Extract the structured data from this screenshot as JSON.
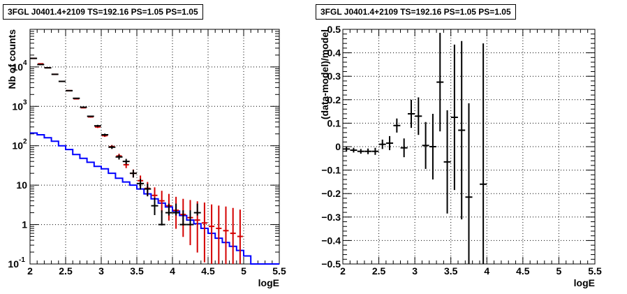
{
  "chart_data": [
    {
      "type": "histogram",
      "title": "3FGL J0401.4+2109 TS=192.16 PS=1.05 PS=1.05",
      "xlabel": "logE",
      "ylabel": "Nb of counts",
      "xlim": [
        2,
        5.5
      ],
      "ylim": [
        0.1,
        90000
      ],
      "y_scale": "log",
      "grid": true,
      "x_ticks": [
        "2",
        "2.5",
        "3",
        "3.5",
        "4",
        "4.5",
        "5",
        "5.5"
      ],
      "y_ticks": [
        {
          "value": 0.1,
          "base": "10",
          "exp": "-1"
        },
        {
          "value": 1,
          "base": "1",
          "exp": ""
        },
        {
          "value": 10,
          "base": "10",
          "exp": ""
        },
        {
          "value": 100,
          "base": "10",
          "exp": "2"
        },
        {
          "value": 1000,
          "base": "10",
          "exp": "3"
        },
        {
          "value": 10000,
          "base": "10",
          "exp": "4"
        }
      ],
      "series": [
        {
          "role": "data points (black)",
          "color": "#000000",
          "x": [
            2.05,
            2.15,
            2.25,
            2.35,
            2.45,
            2.55,
            2.65,
            2.75,
            2.85,
            2.95,
            3.05,
            3.15,
            3.25,
            3.35,
            3.45,
            3.55,
            3.65,
            3.75,
            3.85,
            3.95,
            4.05,
            4.15,
            4.25,
            4.35
          ],
          "y": [
            16500,
            11500,
            9500,
            6500,
            4300,
            2500,
            1600,
            950,
            560,
            320,
            190,
            92,
            52,
            40,
            20,
            11,
            8,
            3,
            1,
            2,
            2,
            1,
            1,
            2
          ],
          "err_lo": [
            0.99,
            0.99,
            0.99,
            0.99,
            0.99,
            0.99,
            0.98,
            0.97,
            0.96,
            0.94,
            0.93,
            0.9,
            0.86,
            0.84,
            0.78,
            0.7,
            0.65,
            0.58,
            0.95,
            0.85,
            0.85,
            0.95,
            0.95,
            0.85
          ],
          "err_hi": [
            1.01,
            1.01,
            1.01,
            1.01,
            1.02,
            1.02,
            1.03,
            1.03,
            1.04,
            1.06,
            1.07,
            1.1,
            1.14,
            1.16,
            1.22,
            1.3,
            1.35,
            1.6,
            2.3,
            1.7,
            1.7,
            2.3,
            2.3,
            1.7
          ]
        },
        {
          "role": "model points (red)",
          "color": "#d40000",
          "x": [
            2.05,
            2.15,
            2.25,
            2.35,
            2.45,
            2.55,
            2.65,
            2.75,
            2.85,
            2.95,
            3.05,
            3.15,
            3.25,
            3.35,
            3.45,
            3.55,
            3.65,
            3.75,
            3.85,
            3.95,
            4.05,
            4.15,
            4.25,
            4.35,
            4.45,
            4.55,
            4.65,
            4.75,
            4.85,
            4.95
          ],
          "y": [
            16500,
            12000,
            9500,
            6500,
            4300,
            2500,
            1550,
            920,
            540,
            300,
            180,
            95,
            55,
            33,
            20,
            13,
            8.3,
            5.5,
            4,
            3,
            2.3,
            1.8,
            1.5,
            1.3,
            1.1,
            0.9,
            0.8,
            0.7,
            0.6,
            0.5
          ],
          "err_lo": [
            0.99,
            0.99,
            0.99,
            0.99,
            0.99,
            0.99,
            0.98,
            0.97,
            0.96,
            0.94,
            0.93,
            0.9,
            0.86,
            0.82,
            0.78,
            0.7,
            0.65,
            0.58,
            0.5,
            0.42,
            0.34,
            0.27,
            0.2,
            0.15,
            0.1,
            0.05,
            0.05,
            0.05,
            0.05,
            0.05
          ],
          "err_hi": [
            1.01,
            1.01,
            1.01,
            1.01,
            1.02,
            1.02,
            1.03,
            1.03,
            1.04,
            1.06,
            1.07,
            1.1,
            1.14,
            1.2,
            1.25,
            1.35,
            1.45,
            1.6,
            1.8,
            2.0,
            2.2,
            2.5,
            2.8,
            3.0,
            3.3,
            3.6,
            3.8,
            4.1,
            4.4,
            4.8
          ]
        },
        {
          "role": "model histogram (blue step)",
          "color": "#0000ff",
          "x_edges": [
            2.0,
            2.1,
            2.2,
            2.3,
            2.4,
            2.5,
            2.6,
            2.7,
            2.8,
            2.9,
            3.0,
            3.1,
            3.2,
            3.3,
            3.4,
            3.5,
            3.6,
            3.7,
            3.8,
            3.9,
            4.0,
            4.1,
            4.2,
            4.3,
            4.4,
            4.5,
            4.6,
            4.7,
            4.8,
            4.9,
            5.0,
            5.1,
            5.2,
            5.3,
            5.4,
            5.5
          ],
          "y": [
            210,
            190,
            160,
            130,
            100,
            80,
            60,
            48,
            38,
            30,
            26,
            20,
            15,
            12,
            10,
            8,
            6,
            4.5,
            3.5,
            2.8,
            2.2,
            1.7,
            1.3,
            1.05,
            0.8,
            0.6,
            0.45,
            0.35,
            0.28,
            0.22,
            0.16,
            0.1,
            0.1,
            0.1,
            0.1
          ]
        }
      ]
    },
    {
      "type": "scatter",
      "title": "3FGL J0401.4+2109 TS=192.16 PS=1.05 PS=1.05",
      "xlabel": "logE",
      "ylabel": "(data-model)/model",
      "xlim": [
        2,
        5.5
      ],
      "ylim": [
        -0.5,
        0.5
      ],
      "grid": true,
      "x_ticks": [
        "2",
        "2.5",
        "3",
        "3.5",
        "4",
        "4.5",
        "5",
        "5.5"
      ],
      "y_ticks": [
        "0.5",
        "0.4",
        "0.3",
        "0.2",
        "0.1",
        "0",
        "−0.1",
        "−0.2",
        "−0.3",
        "−0.4",
        "−0.5"
      ],
      "series": [
        {
          "role": "residuals (black)",
          "color": "#000000",
          "x": [
            2.05,
            2.15,
            2.25,
            2.35,
            2.45,
            2.55,
            2.65,
            2.75,
            2.85,
            2.95,
            3.05,
            3.15,
            3.25,
            3.35,
            3.45,
            3.55,
            3.65,
            3.75,
            3.95
          ],
          "y": [
            -0.01,
            -0.015,
            -0.02,
            -0.02,
            -0.02,
            0.01,
            0.015,
            0.09,
            -0.005,
            0.14,
            0.13,
            0.005,
            0.0,
            0.275,
            -0.065,
            0.125,
            0.07,
            -0.215,
            -0.16
          ],
          "err": [
            0.01,
            0.01,
            0.01,
            0.012,
            0.015,
            0.02,
            0.03,
            0.03,
            0.04,
            0.06,
            0.08,
            0.1,
            0.14,
            0.21,
            0.22,
            0.31,
            0.38,
            0.4,
            0.6
          ]
        }
      ]
    }
  ]
}
